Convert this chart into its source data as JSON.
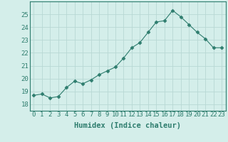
{
  "x": [
    0,
    1,
    2,
    3,
    4,
    5,
    6,
    7,
    8,
    9,
    10,
    11,
    12,
    13,
    14,
    15,
    16,
    17,
    18,
    19,
    20,
    21,
    22,
    23
  ],
  "y": [
    18.7,
    18.8,
    18.5,
    18.6,
    19.3,
    19.8,
    19.6,
    19.9,
    20.3,
    20.6,
    20.9,
    21.6,
    22.4,
    22.8,
    23.6,
    24.4,
    24.5,
    25.3,
    24.8,
    24.2,
    23.6,
    23.1,
    22.4,
    22.4
  ],
  "line_color": "#2e7d6e",
  "marker": "D",
  "marker_size": 2.5,
  "bg_color": "#d4eeea",
  "grid_color": "#b8d8d4",
  "xlabel": "Humidex (Indice chaleur)",
  "ylim": [
    17.5,
    26.0
  ],
  "yticks": [
    18,
    19,
    20,
    21,
    22,
    23,
    24,
    25
  ],
  "xlim": [
    -0.5,
    23.5
  ],
  "label_fontsize": 7.5,
  "tick_fontsize": 6.5
}
